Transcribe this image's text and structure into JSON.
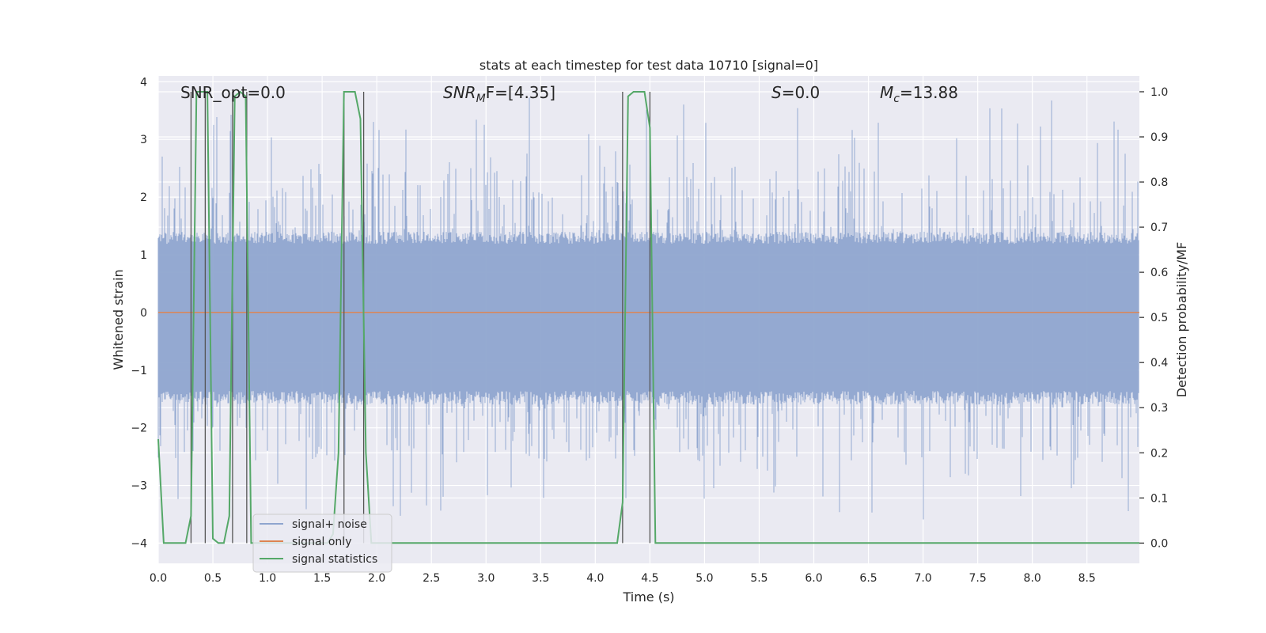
{
  "chart_data": {
    "type": "line",
    "title": "stats at each timestep for test data 10710 [signal=0]",
    "xlabel": "Time (s)",
    "ylabel_left": "Whitened strain",
    "ylabel_right": "Detection probability/MF",
    "xlim": [
      0.0,
      8.98
    ],
    "ylim_left": [
      -4.35,
      4.1
    ],
    "ylim_right": [
      -0.045,
      1.035
    ],
    "x_ticks": [
      "0.0",
      "0.5",
      "1.0",
      "1.5",
      "2.0",
      "2.5",
      "3.0",
      "3.5",
      "4.0",
      "4.5",
      "5.0",
      "5.5",
      "6.0",
      "6.5",
      "7.0",
      "7.5",
      "8.0",
      "8.5"
    ],
    "y_left_ticks": [
      "−4",
      "−3",
      "−2",
      "−1",
      "0",
      "1",
      "2",
      "3",
      "4"
    ],
    "y_right_ticks": [
      "0.0",
      "0.1",
      "0.2",
      "0.3",
      "0.4",
      "0.5",
      "0.6",
      "0.7",
      "0.8",
      "0.9",
      "1.0"
    ],
    "grid": true,
    "legend_location": "lower-left",
    "legend": [
      "signal+ noise",
      "signal only",
      "signal statistics"
    ],
    "annotations": {
      "snr_opt": "SNR_opt=0.0",
      "snr_mf_main": "SNR",
      "snr_mf_sub": "M",
      "snr_mf_rest": "F=[4.35]",
      "s_main": "S",
      "s_rest": "=0.0",
      "mc_main": "M",
      "mc_sub": "c",
      "mc_rest": "=13.88"
    },
    "series": [
      {
        "name": "signal+ noise",
        "axis": "left",
        "color": "#8fa5cf",
        "description_range": [
          -3.6,
          3.75
        ],
        "typical_envelope": [
          -1.6,
          1.4
        ]
      },
      {
        "name": "signal only",
        "axis": "left",
        "color": "#dd8452",
        "x": [
          0.0,
          8.98
        ],
        "y": [
          0.0,
          0.0
        ]
      },
      {
        "name": "signal statistics",
        "axis": "right",
        "color": "#55a868",
        "x": [
          0.0,
          0.05,
          0.1,
          0.25,
          0.3,
          0.35,
          0.4,
          0.45,
          0.5,
          0.55,
          0.6,
          0.65,
          0.7,
          0.75,
          0.8,
          0.85,
          0.9,
          1.55,
          1.6,
          1.65,
          1.7,
          1.75,
          1.8,
          1.85,
          1.9,
          1.95,
          2.0,
          2.05,
          4.2,
          4.25,
          4.3,
          4.35,
          4.4,
          4.45,
          4.5,
          4.55,
          4.6,
          8.98
        ],
        "y": [
          0.23,
          0.0,
          0.0,
          0.0,
          0.06,
          1.0,
          1.0,
          1.0,
          0.01,
          0.0,
          0.0,
          0.06,
          0.99,
          1.0,
          0.99,
          0.0,
          0.0,
          0.0,
          0.02,
          0.2,
          1.0,
          1.0,
          1.0,
          0.94,
          0.2,
          0.0,
          0.0,
          0.0,
          0.0,
          0.09,
          0.99,
          1.0,
          1.0,
          1.0,
          0.92,
          0.0,
          0.0,
          0.0
        ]
      }
    ],
    "vertical_markers": [
      0.3,
      0.43,
      0.68,
      0.81,
      1.7,
      1.88,
      4.25,
      4.5
    ]
  }
}
